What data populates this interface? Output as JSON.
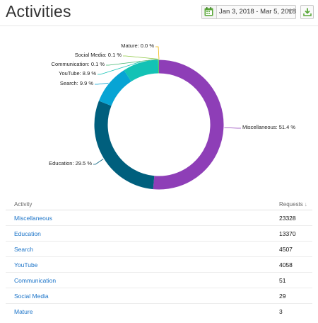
{
  "header": {
    "title": "Activities",
    "date_range": "Jan 3, 2018 - Mar 5, 2018",
    "icons": {
      "calendar": "calendar-icon",
      "dropdown": "chevron-down-icon",
      "export": "download-icon"
    },
    "calendar_color": "#5aa839"
  },
  "chart_data": {
    "type": "pie",
    "slices": [
      {
        "label": "Miscellaneous",
        "percent": 51.4,
        "label_text": "Miscellaneous: 51.4 %",
        "color": "#8e3eb7"
      },
      {
        "label": "Education",
        "percent": 29.5,
        "label_text": "Education: 29.5 %",
        "color": "#005f7d"
      },
      {
        "label": "Search",
        "percent": 9.9,
        "label_text": "Search: 9.9 %",
        "color": "#07a4d4"
      },
      {
        "label": "YouTube",
        "percent": 8.9,
        "label_text": "YouTube: 8.9 %",
        "color": "#13c2b5"
      },
      {
        "label": "Communication",
        "percent": 0.1,
        "label_text": "Communication: 0.1 %",
        "color": "#3fb56e"
      },
      {
        "label": "Social Media",
        "percent": 0.1,
        "label_text": "Social Media: 0.1 %",
        "color": "#8cc63f"
      },
      {
        "label": "Mature",
        "percent": 0.0,
        "label_text": "Mature: 0.0 %",
        "color": "#f0b400"
      }
    ]
  },
  "table": {
    "headers": {
      "activity": "Activity",
      "requests": "Requests",
      "sort_indicator": "↓"
    },
    "rows": [
      {
        "activity": "Miscellaneous",
        "requests": "23328"
      },
      {
        "activity": "Education",
        "requests": "13370"
      },
      {
        "activity": "Search",
        "requests": "4507"
      },
      {
        "activity": "YouTube",
        "requests": "4058"
      },
      {
        "activity": "Communication",
        "requests": "51"
      },
      {
        "activity": "Social Media",
        "requests": "29"
      },
      {
        "activity": "Mature",
        "requests": "3"
      }
    ]
  }
}
